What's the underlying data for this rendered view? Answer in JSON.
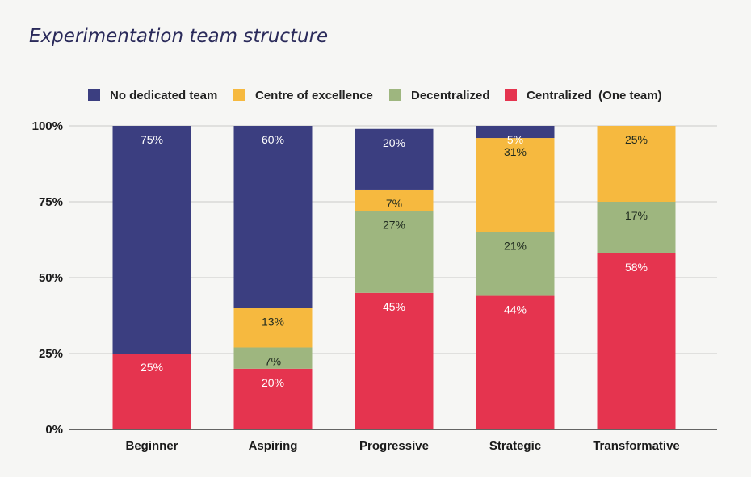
{
  "colors": {
    "no_dedicated": "#3b3e80",
    "coe": "#f6b93f",
    "decentralized": "#9eb67f",
    "centralized": "#e5344f"
  },
  "chart_data": {
    "type": "bar",
    "stacked": true,
    "title": "Experimentation team structure",
    "categories": [
      "Beginner",
      "Aspiring",
      "Progressive",
      "Strategic",
      "Transformative"
    ],
    "yticks": [
      "0%",
      "25%",
      "50%",
      "75%",
      "100%"
    ],
    "ylim": [
      0,
      100
    ],
    "legend_position": "top",
    "series": [
      {
        "key": "centralized",
        "name": "Centralized  (One team)",
        "values": [
          25,
          20,
          45,
          44,
          58
        ],
        "labels": [
          "25%",
          "20%",
          "45%",
          "44%",
          "58%"
        ]
      },
      {
        "key": "decentralized",
        "name": "Decentralized",
        "values": [
          0,
          7,
          27,
          21,
          17
        ],
        "labels": [
          "",
          "7%",
          "27%",
          "21%",
          "17%"
        ]
      },
      {
        "key": "coe",
        "name": "Centre of excellence",
        "values": [
          0,
          13,
          7,
          31,
          25
        ],
        "labels": [
          "",
          "13%",
          "7%",
          "31%",
          "25%"
        ]
      },
      {
        "key": "no_dedicated",
        "name": "No dedicated team",
        "values": [
          75,
          60,
          20,
          5,
          0
        ],
        "labels": [
          "75%",
          "60%",
          "20%",
          "5%",
          ""
        ]
      }
    ],
    "legend_order": [
      "no_dedicated",
      "coe",
      "decentralized",
      "centralized"
    ]
  }
}
